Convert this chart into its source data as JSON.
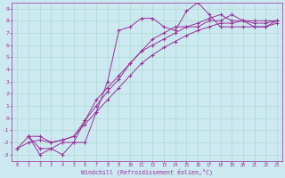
{
  "xlabel": "Windchill (Refroidissement éolien,°C)",
  "background_color": "#cce8f0",
  "grid_color": "#aaddcc",
  "line_color": "#993399",
  "xlim": [
    -0.5,
    23.5
  ],
  "ylim": [
    -3.5,
    9.5
  ],
  "xticks": [
    0,
    1,
    2,
    3,
    4,
    5,
    6,
    7,
    8,
    9,
    10,
    11,
    12,
    13,
    14,
    15,
    16,
    17,
    18,
    19,
    20,
    21,
    22,
    23
  ],
  "yticks": [
    -3,
    -2,
    -1,
    0,
    1,
    2,
    3,
    4,
    5,
    6,
    7,
    8,
    9
  ],
  "line1_x": [
    1,
    2,
    3,
    4,
    5,
    6,
    7,
    8,
    9,
    10,
    11,
    12,
    13,
    14,
    15,
    16,
    17,
    18,
    19,
    20,
    21,
    22,
    23
  ],
  "line1_y": [
    -1.5,
    -3,
    -2.5,
    -3,
    -2,
    -2,
    0.5,
    3.0,
    7.2,
    7.5,
    8.2,
    8.2,
    7.5,
    7.2,
    8.8,
    9.5,
    8.5,
    7.5,
    7.5,
    7.5,
    7.5,
    7.5,
    8.0
  ],
  "line2_x": [
    1,
    2,
    3,
    4,
    5,
    6,
    7,
    8,
    9,
    10,
    11,
    12,
    13,
    14,
    15,
    16,
    17,
    18,
    19,
    20,
    21,
    22,
    23
  ],
  "line2_y": [
    -1.5,
    -2.5,
    -2.5,
    -2.0,
    -2.0,
    -0.2,
    1.5,
    2.5,
    3.5,
    4.5,
    5.5,
    6.5,
    7.0,
    7.5,
    7.5,
    7.5,
    8.0,
    8.0,
    8.5,
    8.0,
    8.0,
    8.0,
    8.0
  ],
  "line3_x": [
    0,
    1,
    2,
    3,
    4,
    5,
    6,
    7,
    8,
    9,
    10,
    11,
    12,
    13,
    14,
    15,
    16,
    17,
    18,
    19,
    20,
    21,
    22,
    23
  ],
  "line3_y": [
    -2.5,
    -2.0,
    -1.8,
    -2.0,
    -1.8,
    -1.5,
    -0.5,
    0.5,
    1.5,
    2.5,
    3.5,
    4.5,
    5.2,
    5.8,
    6.3,
    6.8,
    7.2,
    7.5,
    7.8,
    7.8,
    8.0,
    7.5,
    7.5,
    7.8
  ],
  "line4_x": [
    0,
    1,
    2,
    3,
    4,
    5,
    6,
    7,
    8,
    9,
    10,
    11,
    12,
    13,
    14,
    15,
    16,
    17,
    18,
    19,
    20,
    21,
    22,
    23
  ],
  "line4_y": [
    -2.5,
    -1.5,
    -1.5,
    -2.0,
    -1.8,
    -1.5,
    -0.2,
    1.0,
    2.2,
    3.2,
    4.5,
    5.5,
    6.0,
    6.5,
    7.0,
    7.5,
    7.8,
    8.2,
    8.5,
    8.0,
    8.0,
    7.8,
    7.8,
    8.0
  ]
}
